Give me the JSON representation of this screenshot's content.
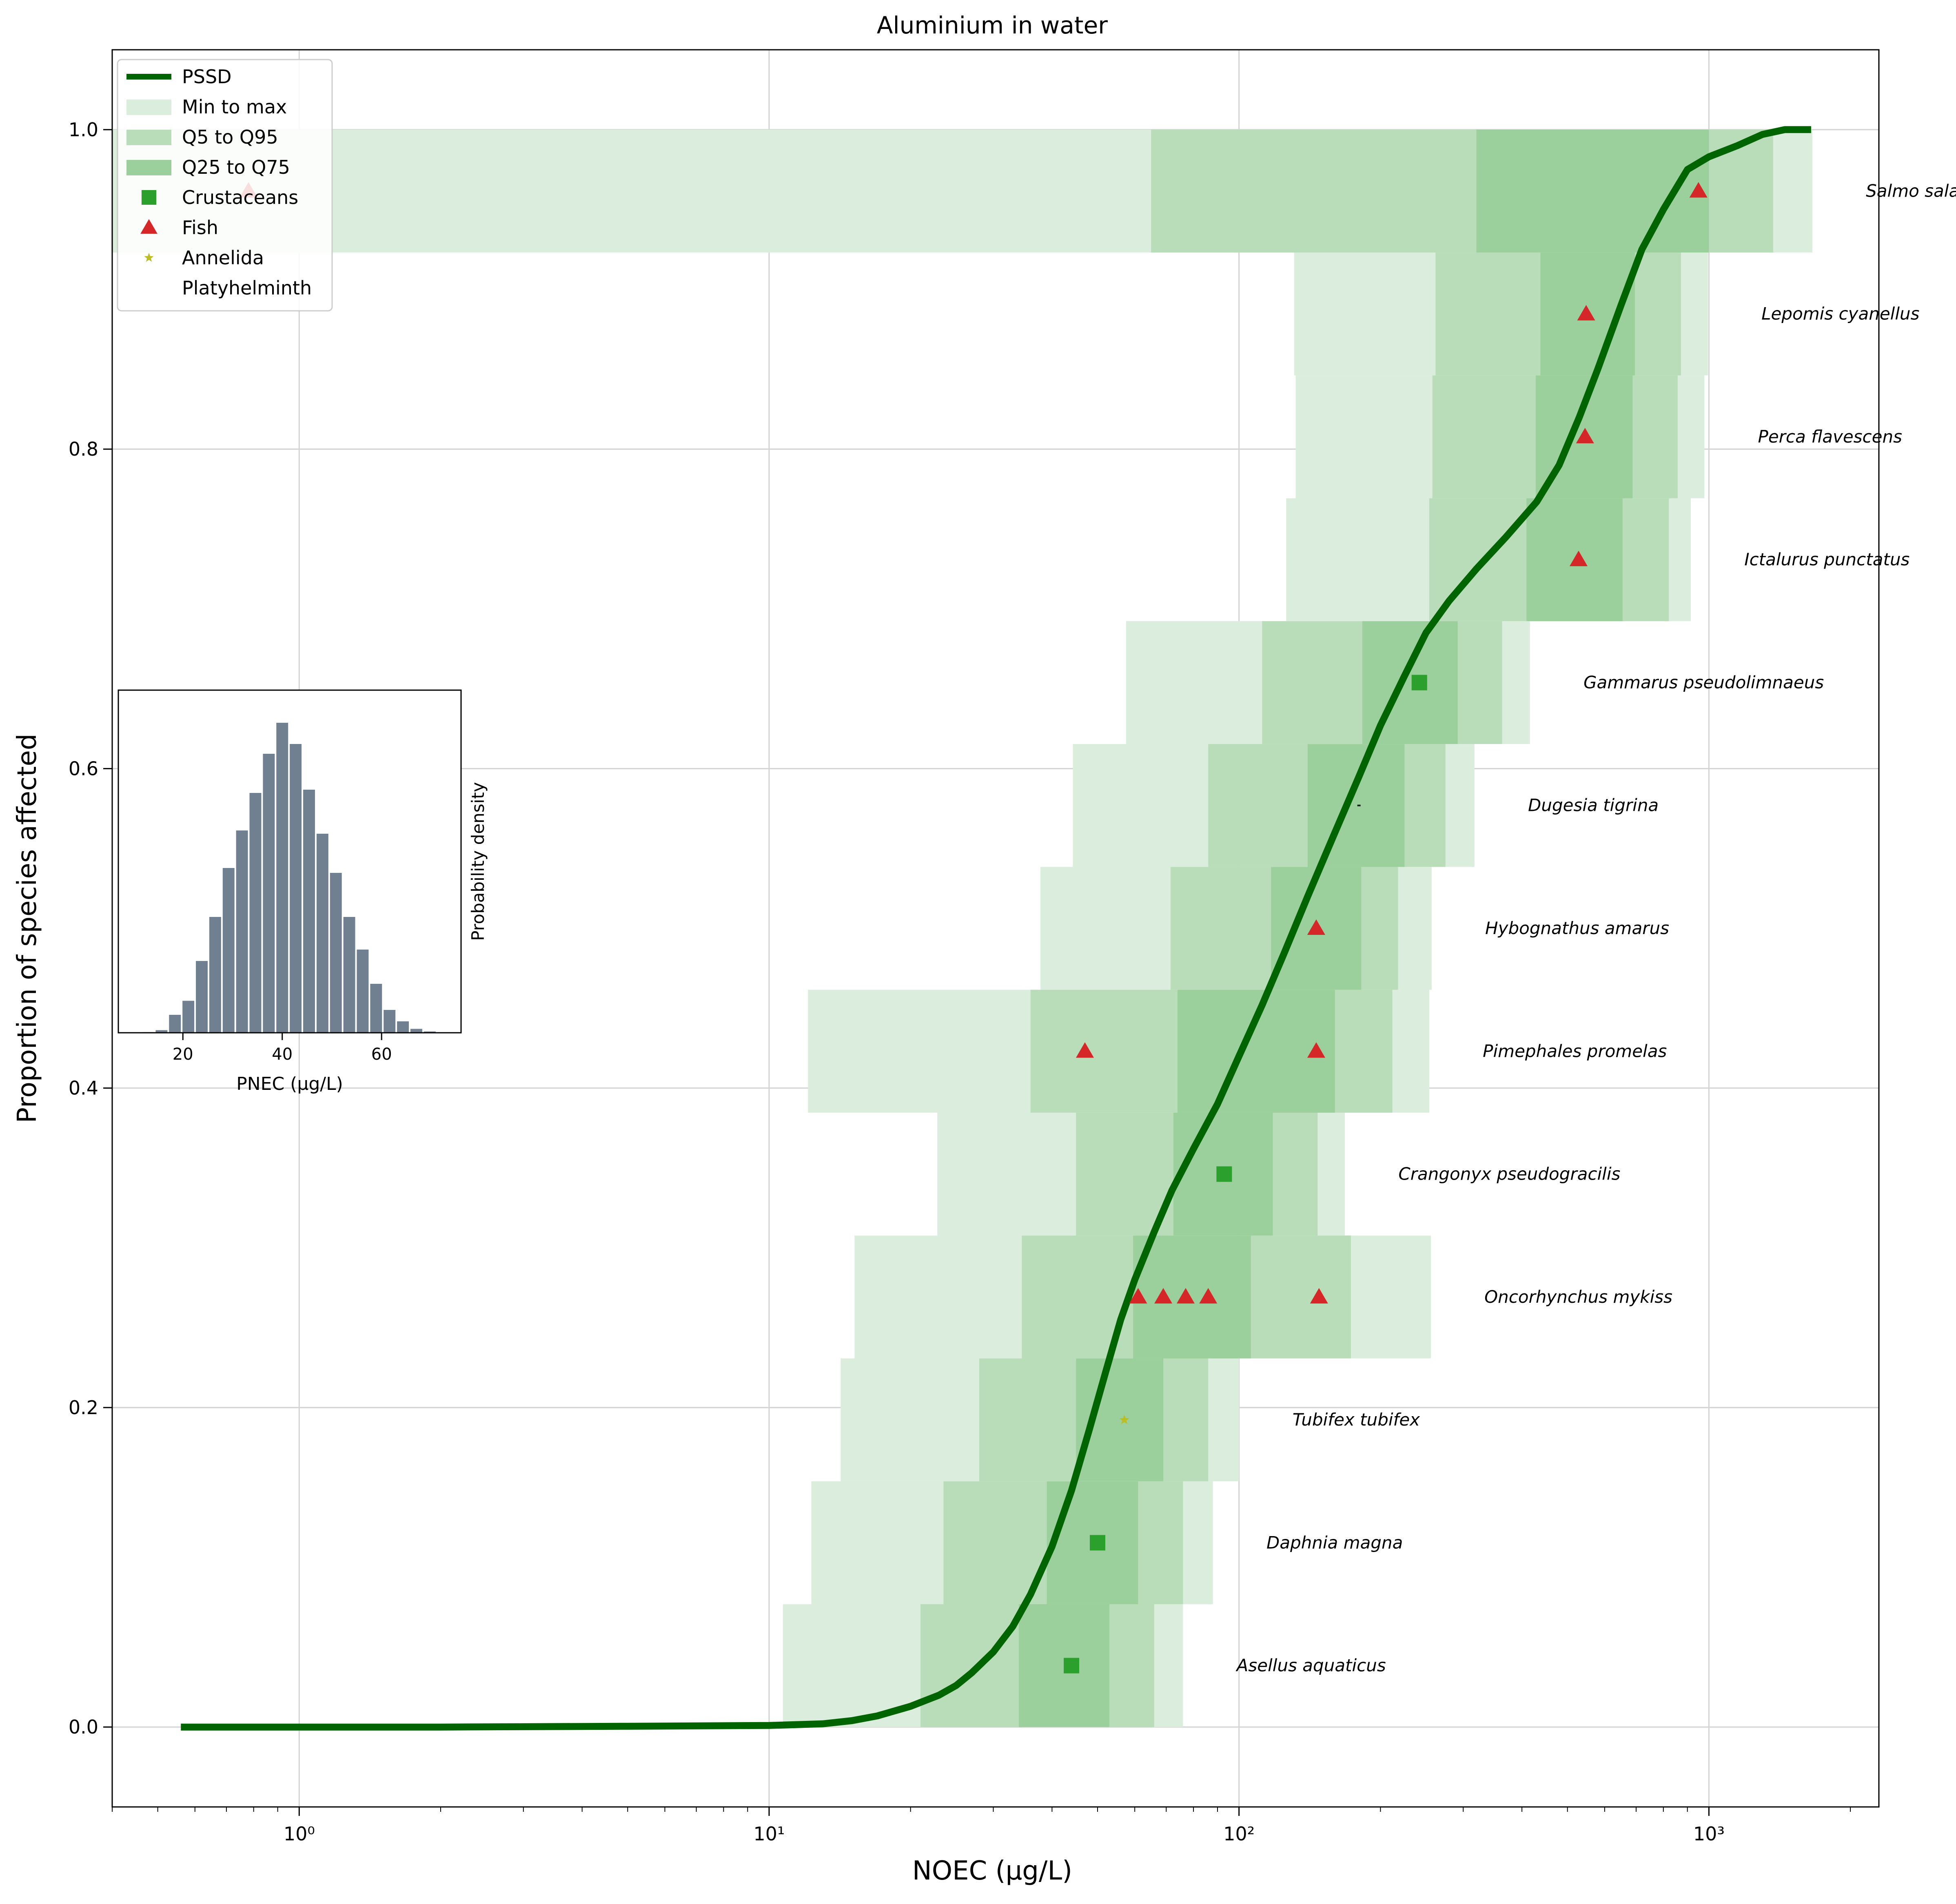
{
  "chart_data": {
    "type": "scatter",
    "title": "Aluminium in water",
    "xlabel": "NOEC (µg/L)",
    "ylabel": "Proportion of species affected",
    "x_scale": "log",
    "xlim": [
      0.4,
      2300
    ],
    "ylim": [
      -0.05,
      1.05
    ],
    "x_ticks": [
      {
        "value": 1,
        "label": "10⁰"
      },
      {
        "value": 10,
        "label": "10¹"
      },
      {
        "value": 100,
        "label": "10²"
      },
      {
        "value": 1000,
        "label": "10³"
      }
    ],
    "y_ticks": [
      {
        "value": 0,
        "label": "0.0"
      },
      {
        "value": 0.2,
        "label": "0.2"
      },
      {
        "value": 0.4,
        "label": "0.4"
      },
      {
        "value": 0.6,
        "label": "0.6"
      },
      {
        "value": 0.8,
        "label": "0.8"
      },
      {
        "value": 1.0,
        "label": "1.0"
      }
    ],
    "grid": true,
    "legend_position": "top-left",
    "legend": [
      {
        "label": "PSSD",
        "kind": "line",
        "color": "#006400"
      },
      {
        "label": "Min to max",
        "kind": "patch",
        "color": "#dbeddc"
      },
      {
        "label": "Q5 to Q95",
        "kind": "patch",
        "color": "#b8ddb8"
      },
      {
        "label": "Q25 to Q75",
        "kind": "patch",
        "color": "#9bcf9b"
      },
      {
        "label": "Crustaceans",
        "kind": "square",
        "color": "#2ca02c"
      },
      {
        "label": "Fish",
        "kind": "triangle",
        "color": "#d62728"
      },
      {
        "label": "Annelida",
        "kind": "star",
        "color": "#bcbd22"
      },
      {
        "label": "Platyhelminth",
        "kind": "none",
        "color": "#1f1f1f"
      }
    ],
    "band_colors": {
      "minmax": "#dbeddc",
      "q5q95": "#b8ddb8",
      "q25q75": "#9bcf9b"
    },
    "species": [
      {
        "name": "Asellus aquaticus",
        "group": "Crustaceans",
        "min": 10.7,
        "q5": 21,
        "q25": 34,
        "q75": 53,
        "q95": 66,
        "max": 76,
        "points": [
          44
        ]
      },
      {
        "name": "Daphnia magna",
        "group": "Crustaceans",
        "min": 12.3,
        "q5": 23.5,
        "q25": 39,
        "q75": 61,
        "q95": 76,
        "max": 88,
        "points": [
          50
        ]
      },
      {
        "name": "Tubifex tubifex",
        "group": "Annelida",
        "min": 14.2,
        "q5": 28,
        "q25": 45,
        "q75": 69,
        "q95": 86,
        "max": 100,
        "points": [
          57
        ]
      },
      {
        "name": "Oncorhynchus mykiss",
        "group": "Fish",
        "min": 15.2,
        "q5": 34.5,
        "q25": 59.5,
        "q75": 106,
        "q95": 173,
        "max": 256,
        "points": [
          61,
          69,
          77,
          86,
          148
        ]
      },
      {
        "name": "Crangonyx pseudogracilis",
        "group": "Crustaceans",
        "min": 22.8,
        "q5": 45,
        "q25": 72.5,
        "q75": 118,
        "q95": 147,
        "max": 168,
        "points": [
          93
        ]
      },
      {
        "name": "Pimephales promelas",
        "group": "Fish",
        "min": 12.1,
        "q5": 36,
        "q25": 74,
        "q75": 160,
        "q95": 212,
        "max": 254,
        "points": [
          47,
          146
        ]
      },
      {
        "name": "Hybognathus amarus",
        "group": "Fish",
        "min": 37.8,
        "q5": 71.5,
        "q25": 117,
        "q75": 182,
        "q95": 218,
        "max": 257,
        "points": [
          146
        ]
      },
      {
        "name": "Dugesia tigrina",
        "group": "Platyhelminth",
        "min": 44.3,
        "q5": 86,
        "q25": 140,
        "q75": 225,
        "q95": 275,
        "max": 317,
        "points": [
          180
        ]
      },
      {
        "name": "Gammarus pseudolimnaeus",
        "group": "Crustaceans",
        "min": 57.5,
        "q5": 112,
        "q25": 183,
        "q75": 292,
        "q95": 363,
        "max": 416,
        "points": [
          242
        ]
      },
      {
        "name": "Ictalurus punctatus",
        "group": "Fish",
        "min": 126,
        "q5": 254,
        "q25": 409,
        "q75": 655,
        "q95": 822,
        "max": 915,
        "points": [
          528
        ]
      },
      {
        "name": "Perca flavescens",
        "group": "Fish",
        "min": 132,
        "q5": 258,
        "q25": 428,
        "q75": 688,
        "q95": 858,
        "max": 978,
        "points": [
          545
        ]
      },
      {
        "name": "Lepomis cyanellus",
        "group": "Fish",
        "min": 131,
        "q5": 262,
        "q25": 438,
        "q75": 696,
        "q95": 872,
        "max": 995,
        "points": [
          548
        ]
      },
      {
        "name": "Salmo salar",
        "group": "Fish",
        "min": 0.4,
        "q5": 65,
        "q25": 320,
        "q75": 1000,
        "q95": 1370,
        "max": 1660,
        "points": [
          0.78,
          950
        ]
      }
    ],
    "pssd_curve": {
      "x": [
        0.56,
        1,
        2,
        5,
        10,
        13,
        15,
        17,
        20,
        23,
        25,
        27,
        30,
        33,
        36,
        40,
        44,
        48,
        52,
        56,
        60,
        66,
        72,
        80,
        90,
        100,
        112,
        125,
        140,
        160,
        180,
        200,
        225,
        250,
        280,
        320,
        370,
        430,
        480,
        530,
        580,
        650,
        720,
        800,
        900,
        1000,
        1150,
        1300,
        1450,
        1650
      ],
      "y": [
        0.0,
        0.0,
        0.0,
        0.0005,
        0.001,
        0.002,
        0.004,
        0.007,
        0.013,
        0.02,
        0.026,
        0.034,
        0.047,
        0.063,
        0.083,
        0.113,
        0.148,
        0.186,
        0.222,
        0.255,
        0.28,
        0.31,
        0.336,
        0.362,
        0.39,
        0.42,
        0.452,
        0.485,
        0.52,
        0.56,
        0.595,
        0.627,
        0.658,
        0.685,
        0.705,
        0.725,
        0.745,
        0.767,
        0.79,
        0.82,
        0.85,
        0.89,
        0.925,
        0.95,
        0.975,
        0.983,
        0.99,
        0.997,
        1.0,
        1.0
      ]
    },
    "inset": {
      "type": "bar",
      "xlabel": "PNEC (µg/L)",
      "ylabel": "Probability density",
      "xlim": [
        7,
        76
      ],
      "x_ticks": [
        20,
        40,
        60
      ],
      "color": "#708090",
      "bin_width": 2.7,
      "bin_centers": [
        13,
        15.7,
        18.4,
        21.1,
        23.8,
        26.5,
        29.2,
        31.9,
        34.6,
        37.3,
        40,
        42.7,
        45.4,
        48.1,
        50.8,
        53.5,
        56.2,
        58.9,
        61.6,
        64.3,
        67,
        69.7,
        72.4
      ],
      "heights": [
        0.002,
        0.008,
        0.055,
        0.098,
        0.22,
        0.355,
        0.505,
        0.62,
        0.735,
        0.855,
        0.95,
        0.885,
        0.745,
        0.61,
        0.49,
        0.355,
        0.255,
        0.15,
        0.07,
        0.035,
        0.012,
        0.004,
        0.001
      ]
    }
  }
}
